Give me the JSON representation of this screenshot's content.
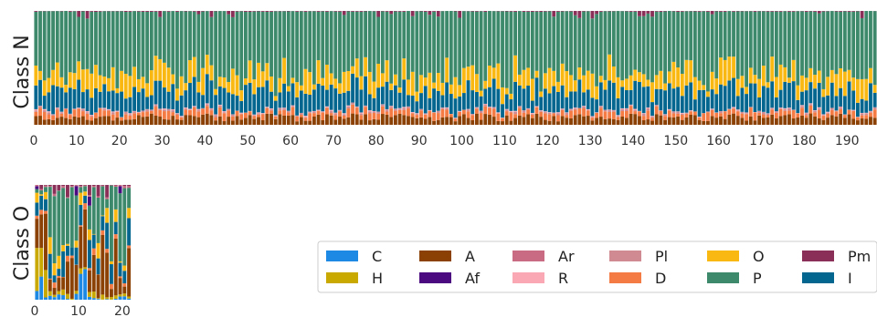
{
  "chart_data": [
    {
      "type": "bar",
      "stacked": "normalized-100%",
      "ylabel": "Class N",
      "x_range": [
        0,
        197
      ],
      "x_ticks": [
        0,
        10,
        20,
        30,
        40,
        50,
        60,
        70,
        80,
        90,
        100,
        110,
        120,
        130,
        140,
        150,
        160,
        170,
        180,
        190
      ],
      "bar_count": 197,
      "approx_mean_composition": {
        "A": 0.06,
        "D": 0.05,
        "Pl": 0.01,
        "R": 0.005,
        "I": 0.17,
        "O": 0.15,
        "P": 0.53,
        "Pm": 0.01
      },
      "grid": false
    },
    {
      "type": "bar",
      "stacked": "normalized-100%",
      "ylabel": "Class O",
      "x_range": [
        0,
        22
      ],
      "x_ticks": [
        0,
        10,
        20
      ],
      "bar_count": 22,
      "grid": false
    }
  ],
  "legend": {
    "placement": "bottom-right",
    "entries": [
      {
        "label": "C",
        "color": "#1e88e5"
      },
      {
        "label": "H",
        "color": "#c9a800"
      },
      {
        "label": "A",
        "color": "#8b4004"
      },
      {
        "label": "Af",
        "color": "#4b0a7f"
      },
      {
        "label": "Ar",
        "color": "#c96b82"
      },
      {
        "label": "R",
        "color": "#f9a8b4"
      },
      {
        "label": "Pl",
        "color": "#d08a92"
      },
      {
        "label": "D",
        "color": "#f47b44"
      },
      {
        "label": "O",
        "color": "#fab813"
      },
      {
        "label": "P",
        "color": "#3c8a6b"
      },
      {
        "label": "Pm",
        "color": "#8a3058"
      },
      {
        "label": "I",
        "color": "#03668f"
      }
    ]
  }
}
